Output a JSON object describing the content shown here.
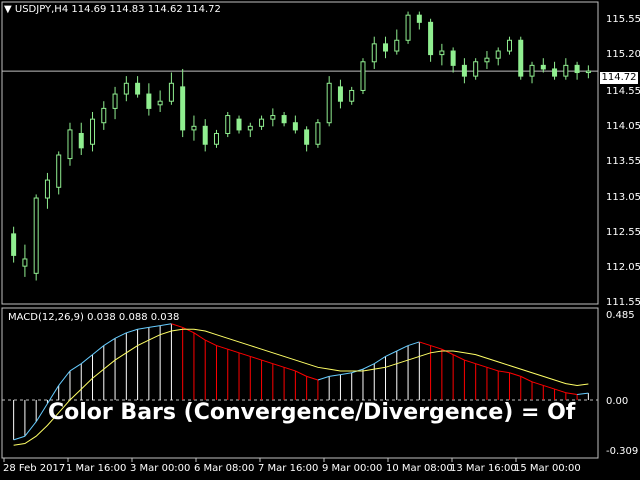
{
  "symbol_header": "USDJPY,H4  114.69 114.83 114.62 114.72",
  "current_price_label": "114.72",
  "price_axis": [
    "115.55",
    "115.20",
    "114.72",
    "114.55",
    "114.05",
    "113.55",
    "113.05",
    "112.55",
    "112.05",
    "111.55"
  ],
  "macd_label": "MACD(12,26,9) 0.038 0.088 0.038",
  "macd_axis": [
    "0.485",
    "0.00",
    "-0.309"
  ],
  "time_axis": [
    "28 Feb 2017",
    "1 Mar 16:00",
    "3 Mar 00:00",
    "6 Mar 08:00",
    "7 Mar 16:00",
    "9 Mar 00:00",
    "10 Mar 08:00",
    "13 Mar 16:00",
    "15 Mar 00:00"
  ],
  "overlay_text": "Color Bars (Convergence/Divergence) = Of",
  "colors": {
    "background": "#000000",
    "candle": "#90ee90",
    "macd_hist_up": "#ffffff",
    "macd_hist_down": "#ff0000",
    "macd_signal": "#ffff66",
    "macd_cyan": "#66ccff",
    "grid": "#c0c0c0"
  },
  "chart_data": {
    "type": "candlestick",
    "price_ylim": [
      111.5,
      115.6
    ],
    "candles": [
      {
        "o": 112.45,
        "h": 112.55,
        "l": 112.05,
        "c": 112.15
      },
      {
        "o": 112.0,
        "h": 112.3,
        "l": 111.85,
        "c": 112.1
      },
      {
        "o": 111.9,
        "h": 113.0,
        "l": 111.8,
        "c": 112.95
      },
      {
        "o": 112.95,
        "h": 113.3,
        "l": 112.8,
        "c": 113.2
      },
      {
        "o": 113.1,
        "h": 113.6,
        "l": 113.0,
        "c": 113.55
      },
      {
        "o": 113.5,
        "h": 114.0,
        "l": 113.4,
        "c": 113.9
      },
      {
        "o": 113.85,
        "h": 114.0,
        "l": 113.55,
        "c": 113.65
      },
      {
        "o": 113.7,
        "h": 114.15,
        "l": 113.6,
        "c": 114.05
      },
      {
        "o": 114.0,
        "h": 114.3,
        "l": 113.9,
        "c": 114.2
      },
      {
        "o": 114.2,
        "h": 114.5,
        "l": 114.05,
        "c": 114.4
      },
      {
        "o": 114.4,
        "h": 114.65,
        "l": 114.3,
        "c": 114.55
      },
      {
        "o": 114.55,
        "h": 114.65,
        "l": 114.35,
        "c": 114.4
      },
      {
        "o": 114.4,
        "h": 114.55,
        "l": 114.1,
        "c": 114.2
      },
      {
        "o": 114.25,
        "h": 114.45,
        "l": 114.15,
        "c": 114.3
      },
      {
        "o": 114.3,
        "h": 114.7,
        "l": 114.25,
        "c": 114.55
      },
      {
        "o": 114.5,
        "h": 114.75,
        "l": 113.8,
        "c": 113.9
      },
      {
        "o": 113.9,
        "h": 114.1,
        "l": 113.75,
        "c": 113.95
      },
      {
        "o": 113.95,
        "h": 114.05,
        "l": 113.6,
        "c": 113.7
      },
      {
        "o": 113.7,
        "h": 113.9,
        "l": 113.65,
        "c": 113.85
      },
      {
        "o": 113.85,
        "h": 114.15,
        "l": 113.8,
        "c": 114.1
      },
      {
        "o": 114.05,
        "h": 114.1,
        "l": 113.85,
        "c": 113.9
      },
      {
        "o": 113.9,
        "h": 114.0,
        "l": 113.8,
        "c": 113.95
      },
      {
        "o": 113.95,
        "h": 114.1,
        "l": 113.9,
        "c": 114.05
      },
      {
        "o": 114.05,
        "h": 114.2,
        "l": 113.95,
        "c": 114.1
      },
      {
        "o": 114.1,
        "h": 114.15,
        "l": 113.95,
        "c": 114.0
      },
      {
        "o": 114.0,
        "h": 114.1,
        "l": 113.85,
        "c": 113.9
      },
      {
        "o": 113.9,
        "h": 113.95,
        "l": 113.6,
        "c": 113.7
      },
      {
        "o": 113.7,
        "h": 114.05,
        "l": 113.65,
        "c": 114.0
      },
      {
        "o": 114.0,
        "h": 114.65,
        "l": 113.95,
        "c": 114.55
      },
      {
        "o": 114.5,
        "h": 114.6,
        "l": 114.2,
        "c": 114.3
      },
      {
        "o": 114.3,
        "h": 114.5,
        "l": 114.25,
        "c": 114.45
      },
      {
        "o": 114.45,
        "h": 114.9,
        "l": 114.4,
        "c": 114.85
      },
      {
        "o": 114.85,
        "h": 115.2,
        "l": 114.75,
        "c": 115.1
      },
      {
        "o": 115.1,
        "h": 115.2,
        "l": 114.9,
        "c": 115.0
      },
      {
        "o": 115.0,
        "h": 115.3,
        "l": 114.95,
        "c": 115.15
      },
      {
        "o": 115.15,
        "h": 115.55,
        "l": 115.1,
        "c": 115.5
      },
      {
        "o": 115.5,
        "h": 115.55,
        "l": 115.3,
        "c": 115.4
      },
      {
        "o": 115.4,
        "h": 115.45,
        "l": 114.85,
        "c": 114.95
      },
      {
        "o": 114.95,
        "h": 115.1,
        "l": 114.8,
        "c": 115.0
      },
      {
        "o": 115.0,
        "h": 115.05,
        "l": 114.7,
        "c": 114.8
      },
      {
        "o": 114.8,
        "h": 114.9,
        "l": 114.55,
        "c": 114.65
      },
      {
        "o": 114.65,
        "h": 114.9,
        "l": 114.6,
        "c": 114.85
      },
      {
        "o": 114.85,
        "h": 115.0,
        "l": 114.75,
        "c": 114.9
      },
      {
        "o": 114.9,
        "h": 115.05,
        "l": 114.8,
        "c": 115.0
      },
      {
        "o": 115.0,
        "h": 115.2,
        "l": 114.95,
        "c": 115.15
      },
      {
        "o": 115.15,
        "h": 115.2,
        "l": 114.6,
        "c": 114.65
      },
      {
        "o": 114.65,
        "h": 114.85,
        "l": 114.55,
        "c": 114.8
      },
      {
        "o": 114.8,
        "h": 114.9,
        "l": 114.7,
        "c": 114.75
      },
      {
        "o": 114.75,
        "h": 114.85,
        "l": 114.6,
        "c": 114.65
      },
      {
        "o": 114.65,
        "h": 114.9,
        "l": 114.6,
        "c": 114.8
      },
      {
        "o": 114.8,
        "h": 114.85,
        "l": 114.6,
        "c": 114.7
      },
      {
        "o": 114.7,
        "h": 114.8,
        "l": 114.62,
        "c": 114.72
      }
    ],
    "macd_ylim": [
      -0.309,
      0.485
    ],
    "macd_hist": [
      -0.22,
      -0.2,
      -0.12,
      -0.02,
      0.08,
      0.16,
      0.2,
      0.25,
      0.3,
      0.34,
      0.37,
      0.39,
      0.4,
      0.41,
      0.42,
      0.4,
      0.37,
      0.33,
      0.3,
      0.28,
      0.26,
      0.24,
      0.22,
      0.2,
      0.18,
      0.16,
      0.13,
      0.11,
      0.13,
      0.14,
      0.15,
      0.17,
      0.2,
      0.24,
      0.27,
      0.3,
      0.32,
      0.3,
      0.28,
      0.25,
      0.22,
      0.2,
      0.18,
      0.16,
      0.15,
      0.13,
      0.1,
      0.08,
      0.06,
      0.04,
      0.03,
      0.038
    ],
    "macd_signal": [
      -0.25,
      -0.24,
      -0.2,
      -0.14,
      -0.07,
      0.0,
      0.06,
      0.12,
      0.17,
      0.22,
      0.26,
      0.3,
      0.33,
      0.36,
      0.38,
      0.39,
      0.39,
      0.38,
      0.36,
      0.34,
      0.32,
      0.3,
      0.28,
      0.26,
      0.24,
      0.22,
      0.2,
      0.18,
      0.17,
      0.16,
      0.16,
      0.16,
      0.17,
      0.18,
      0.2,
      0.22,
      0.24,
      0.26,
      0.27,
      0.27,
      0.26,
      0.25,
      0.23,
      0.21,
      0.19,
      0.17,
      0.15,
      0.13,
      0.11,
      0.09,
      0.08,
      0.088
    ]
  }
}
